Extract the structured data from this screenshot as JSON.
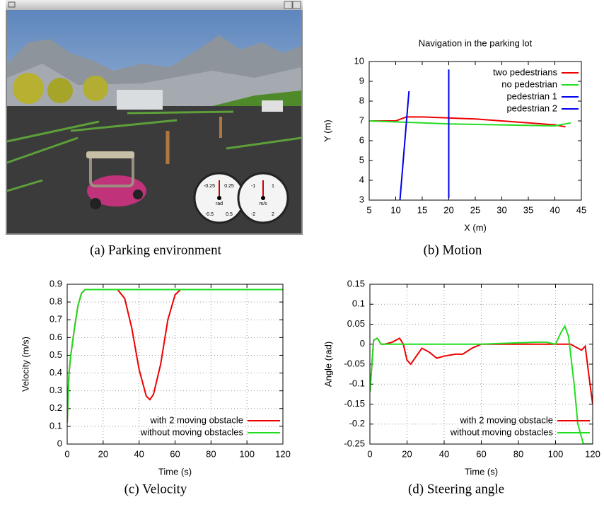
{
  "figure": {
    "captions": [
      "(a) Parking environment",
      "(b) Motion",
      "(c) Velocity",
      "(d) Steering angle"
    ],
    "gauges": [
      {
        "unit": "rad",
        "labels": [
          "-0.25",
          "0.25",
          "-0.5",
          "0.5"
        ]
      },
      {
        "unit": "m/s",
        "labels": [
          "-1",
          "1",
          "-2",
          "2"
        ]
      }
    ]
  },
  "chart_data": [
    {
      "type": "line",
      "title": "Navigation in the parking lot",
      "x_label": "X (m)",
      "y_label": "Y (m)",
      "xlim": [
        5,
        45
      ],
      "xticks": [
        5,
        10,
        15,
        20,
        25,
        30,
        35,
        40,
        45
      ],
      "ylim": [
        3,
        10
      ],
      "yticks": [
        3,
        4,
        5,
        6,
        7,
        8,
        9,
        10
      ],
      "grid": false,
      "legend": "upper right",
      "series": [
        {
          "name": "two pedestrians",
          "color": "#ee0000",
          "x": [
            5,
            10,
            11,
            12,
            15,
            20,
            25,
            30,
            35,
            40,
            42
          ],
          "values": [
            7,
            7,
            7.1,
            7.2,
            7.2,
            7.15,
            7.1,
            7.0,
            6.9,
            6.8,
            6.7
          ]
        },
        {
          "name": "no pedestrian",
          "color": "#22dd22",
          "x": [
            5,
            10,
            15,
            20,
            30,
            40,
            43
          ],
          "values": [
            7,
            6.95,
            6.9,
            6.85,
            6.8,
            6.75,
            6.9
          ]
        },
        {
          "name": "pedestrian 1",
          "color": "#0000ee",
          "x": [
            10.8,
            12.5
          ],
          "values": [
            3,
            8.5
          ]
        },
        {
          "name": "pedestrian 2",
          "color": "#0000ee",
          "x": [
            20,
            20
          ],
          "values": [
            3.1,
            9.6
          ]
        }
      ]
    },
    {
      "type": "line",
      "x_label": "Time (s)",
      "y_label": "Velocity (m/s)",
      "xlim": [
        0,
        120
      ],
      "xticks": [
        0,
        20,
        40,
        60,
        80,
        100,
        120
      ],
      "ylim": [
        0,
        0.9
      ],
      "yticks": [
        0,
        0.1,
        0.2,
        0.3,
        0.4,
        0.5,
        0.6,
        0.7,
        0.8,
        0.9
      ],
      "grid": true,
      "legend": "lower right",
      "series": [
        {
          "name": "with 2 moving obstacle",
          "color": "#ee0000",
          "x": [
            0,
            1,
            2,
            4,
            6,
            8,
            10,
            12,
            20,
            28,
            32,
            36,
            40,
            44,
            46,
            48,
            52,
            56,
            60,
            63,
            70,
            120
          ],
          "values": [
            0.12,
            0.4,
            0.5,
            0.65,
            0.78,
            0.85,
            0.87,
            0.87,
            0.87,
            0.87,
            0.82,
            0.65,
            0.42,
            0.27,
            0.25,
            0.28,
            0.45,
            0.7,
            0.84,
            0.87,
            0.87,
            0.87
          ]
        },
        {
          "name": "without moving obstacles",
          "color": "#22dd22",
          "x": [
            0,
            1,
            2,
            4,
            6,
            8,
            10,
            12,
            120
          ],
          "values": [
            0.12,
            0.4,
            0.5,
            0.65,
            0.78,
            0.85,
            0.87,
            0.87,
            0.87
          ]
        }
      ]
    },
    {
      "type": "line",
      "x_label": "Time (s)",
      "y_label": "Angle (rad)",
      "xlim": [
        0,
        120
      ],
      "xticks": [
        0,
        20,
        40,
        60,
        80,
        100,
        120
      ],
      "ylim": [
        -0.25,
        0.15
      ],
      "yticks": [
        -0.25,
        -0.2,
        -0.15,
        -0.1,
        -0.05,
        0,
        0.05,
        0.1,
        0.15
      ],
      "grid": true,
      "legend": "lower right",
      "series": [
        {
          "name": "with 2 moving obstacle",
          "color": "#ee0000",
          "x": [
            0,
            2,
            4,
            6,
            8,
            12,
            16,
            18,
            20,
            22,
            25,
            28,
            32,
            36,
            40,
            46,
            50,
            55,
            60,
            80,
            100,
            108,
            112,
            114,
            116,
            118,
            120
          ],
          "values": [
            -0.12,
            0.01,
            0.015,
            0,
            0,
            0.005,
            0.015,
            0,
            -0.04,
            -0.05,
            -0.03,
            -0.01,
            -0.02,
            -0.035,
            -0.03,
            -0.025,
            -0.025,
            -0.01,
            0,
            0,
            0,
            0,
            -0.01,
            -0.015,
            -0.005,
            -0.08,
            -0.15
          ]
        },
        {
          "name": "without moving obstacles",
          "color": "#22dd22",
          "x": [
            0,
            2,
            4,
            6,
            8,
            12,
            20,
            60,
            90,
            95,
            100,
            103,
            105,
            107,
            110,
            112,
            115,
            118,
            120
          ],
          "values": [
            -0.12,
            0.01,
            0.015,
            0,
            0,
            0,
            0,
            0,
            0.005,
            0.005,
            0,
            0.03,
            0.045,
            0.02,
            -0.1,
            -0.2,
            -0.25,
            -0.25,
            -0.25
          ]
        }
      ]
    }
  ]
}
